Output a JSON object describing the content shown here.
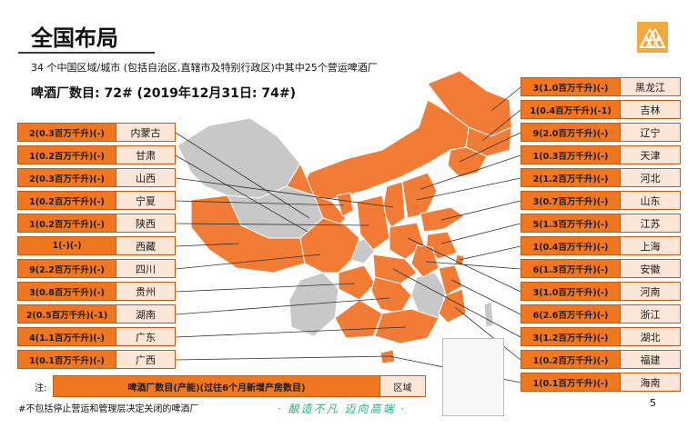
{
  "title": "全国布局",
  "subtitle": "34 个中国区域/城市 (包括自治区,直辖市及特别行政区)中其中25个营运啤酒厂",
  "brewery_count": "啤酒厂数目: 72# (2019年12月31日: 74#)",
  "logo": "triangle-logo-icon",
  "left_regions": [
    {
      "value": "2(0.3百万千升)(-)",
      "name": "内蒙古"
    },
    {
      "value": "1(0.2百万千升)(-)",
      "name": "甘肃"
    },
    {
      "value": "2(0.3百万千升)(-)",
      "name": "山西"
    },
    {
      "value": "1(0.2百万千升)(-)",
      "name": "宁夏"
    },
    {
      "value": "1(0.2百万千升)(-)",
      "name": "陕西"
    },
    {
      "value": "1(-)(-)",
      "name": "西藏"
    },
    {
      "value": "9(2.2百万千升)(-)",
      "name": "四川"
    },
    {
      "value": "3(0.8百万千升)(-)",
      "name": "贵州"
    },
    {
      "value": "2(0.5百万千升)(-1)",
      "name": "湖南"
    },
    {
      "value": "4(1.1百万千升)(-)",
      "name": "广东"
    },
    {
      "value": "1(0.1百万千升)(-)",
      "name": "广西"
    }
  ],
  "right_regions": [
    {
      "value": "3(1.0百万千升)(-)",
      "name": "黑龙江"
    },
    {
      "value": "1(0.4百万千升)(-1)",
      "name": "吉林"
    },
    {
      "value": "9(2.0百万千升)(-)",
      "name": "辽宁"
    },
    {
      "value": "1(0.3百万千升)(-)",
      "name": "天津"
    },
    {
      "value": "2(1.2百万千升)(-)",
      "name": "河北"
    },
    {
      "value": "3(0.7百万千升)(-)",
      "name": "山东"
    },
    {
      "value": "5(1.3百万千升)(-)",
      "name": "江苏"
    },
    {
      "value": "1(0.4百万千升)(-)",
      "name": "上海"
    },
    {
      "value": "6(1.3百万千升)(-)",
      "name": "安徽"
    },
    {
      "value": "3(1.0百万千升)(-)",
      "name": "河南"
    },
    {
      "value": "6(2.6百万千升)(-)",
      "name": "浙江"
    },
    {
      "value": "3(1.2百万千升)(-)",
      "name": "湖北"
    },
    {
      "value": "1(0.2百万千升)(-)",
      "name": "福建"
    },
    {
      "value": "1(0.1百万千升)(-)",
      "name": "海南"
    }
  ],
  "legend": {
    "note_label": "注:",
    "value": "啤酒厂数目(产能)(过往6个月新增产房数目)",
    "name": "区域"
  },
  "footnote": "#不包括停止营运和管理层决定关闭的啤酒厂",
  "slogan": "· 酿造不凡 迈向高端 ·",
  "page_number": "5",
  "colors": {
    "accent": "#f0761f",
    "label_bg": "#fbe6d8",
    "map_orange": "#f27b35",
    "map_grey": "#c8c8c8"
  }
}
